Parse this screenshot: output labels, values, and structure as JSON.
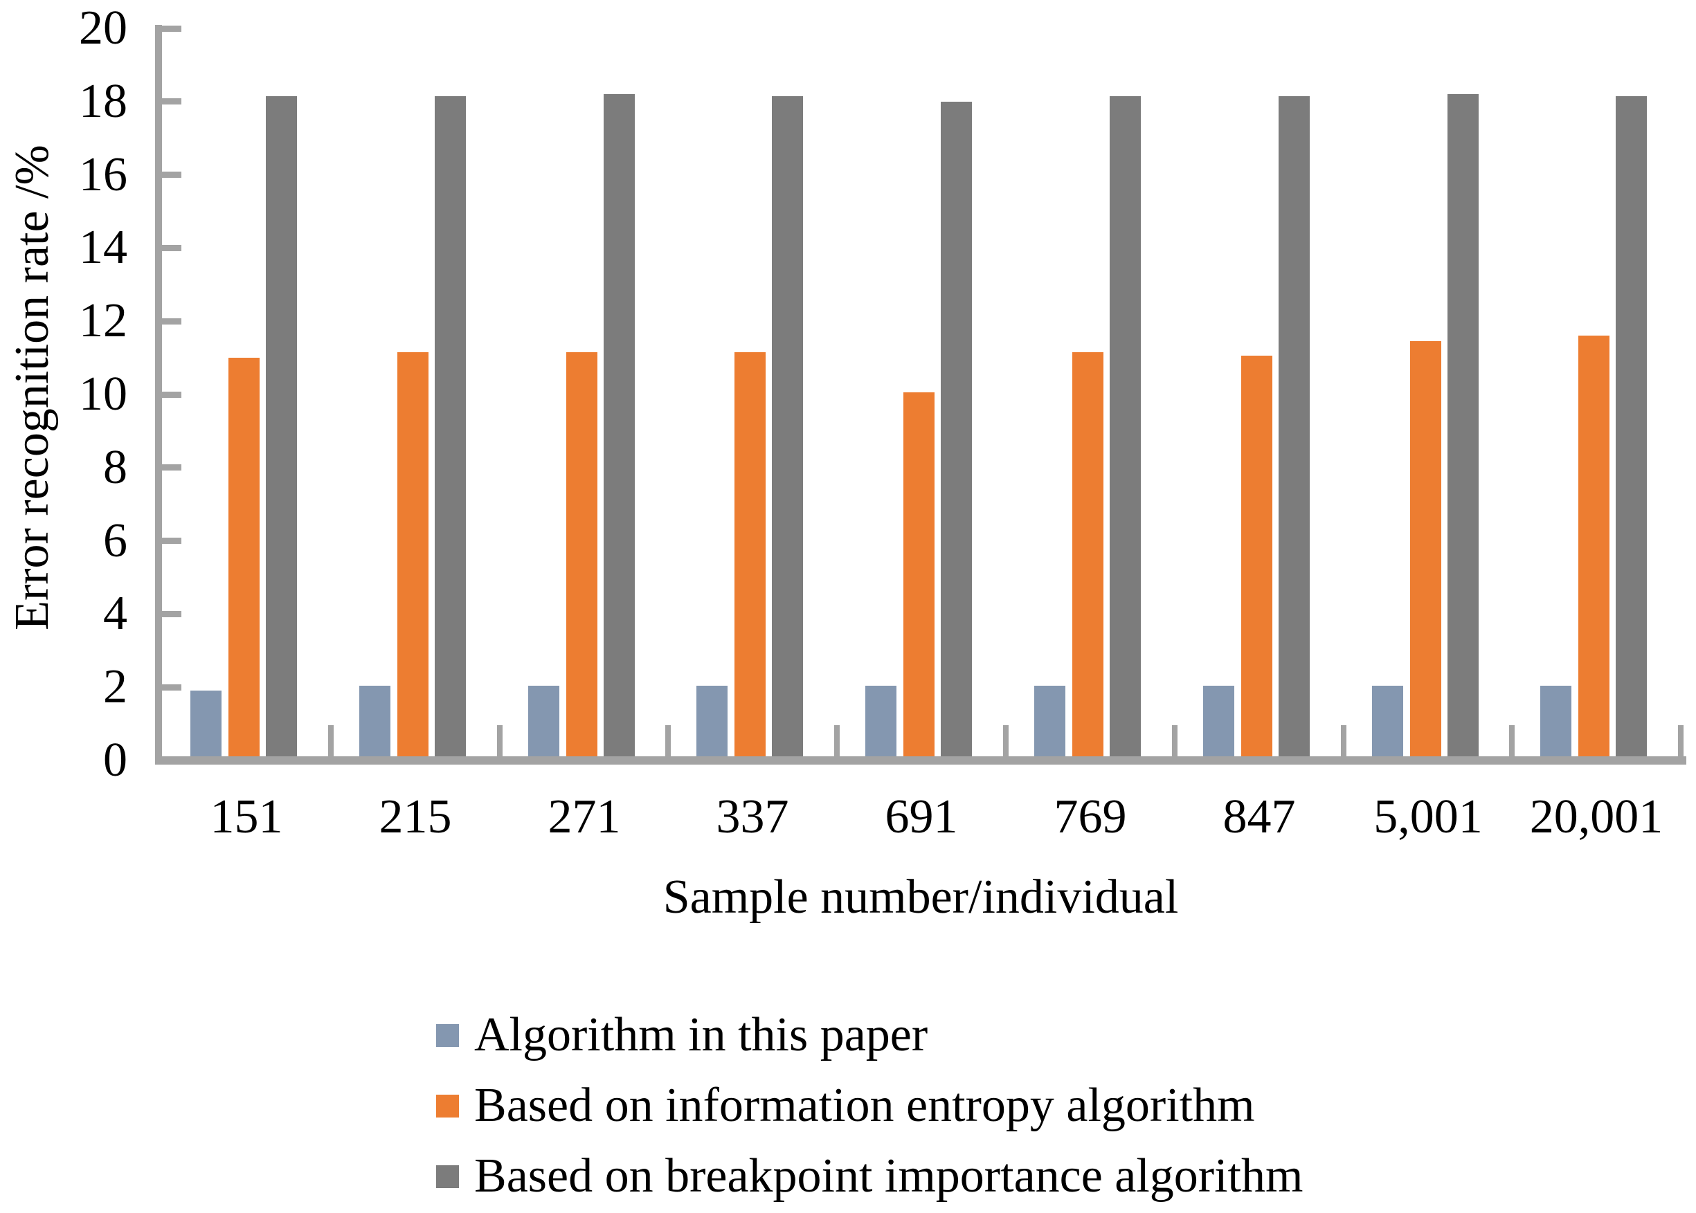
{
  "chart_data": {
    "type": "bar",
    "title": "",
    "xlabel": "Sample number/individual",
    "ylabel": "Error recognition rate /%",
    "categories": [
      "151",
      "215",
      "271",
      "337",
      "691",
      "769",
      "847",
      "5,001",
      "20,001"
    ],
    "series": [
      {
        "name": "Algorithm in this paper",
        "color": "#8497B0",
        "values": [
          1.9,
          2.05,
          2.05,
          2.05,
          2.05,
          2.05,
          2.05,
          2.05,
          2.05
        ]
      },
      {
        "name": "Based on information entropy algorithm",
        "color": "#ED7D31",
        "values": [
          11.0,
          11.15,
          11.15,
          11.15,
          10.05,
          11.15,
          11.05,
          11.45,
          11.6
        ]
      },
      {
        "name": "Based on breakpoint importance algorithm",
        "color": "#7C7C7C",
        "values": [
          18.15,
          18.15,
          18.2,
          18.15,
          18.0,
          18.15,
          18.15,
          18.2,
          18.15
        ]
      }
    ],
    "ylim": [
      0,
      20
    ],
    "ytick_step": 2,
    "ytick_labels": [
      "0",
      "2",
      "4",
      "6",
      "8",
      "10",
      "12",
      "14",
      "16",
      "18",
      "20"
    ],
    "grid": false,
    "legend_position": "bottom-left",
    "axis_color": "#A3A3A3",
    "text_color": "#000000",
    "background_color": "#FFFFFF"
  }
}
